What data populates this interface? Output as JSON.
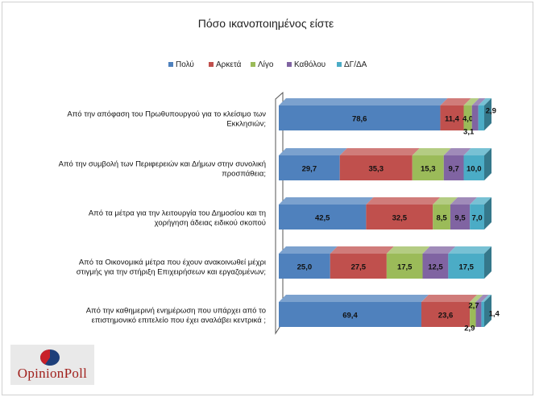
{
  "chart_data": {
    "type": "bar",
    "orientation": "horizontal",
    "stacked": true,
    "title": "Πόσο ικανοποιημένος είστε",
    "legend_position": "top",
    "categories": [
      [
        "Από την απόφαση του Πρωθυπουργού για το κλείσιμο των",
        "Εκκλησιών;"
      ],
      [
        "Από την συμβολή των Περιφερειών και Δήμων στην συνολική",
        "προσπάθεια;"
      ],
      [
        "Από τα μέτρα για την λειτουργία του Δημοσίου και τη",
        "χορήγηση άδειας ειδικού σκοπού"
      ],
      [
        "Από τα Οικονομικά μέτρα που έχουν ανακοινωθεί μέχρι",
        "στιγμής για την στήριξη Επιχειρήσεων και εργαζομένων;"
      ],
      [
        "Από την καθημερινή ενημέρωση που υπάρχει από το",
        "επιστημονικό επιτελείο που έχει αναλάβει κεντρικά ;"
      ]
    ],
    "series": [
      {
        "name": "Πολύ",
        "color": "#4f81bd",
        "values": [
          78.6,
          29.7,
          42.5,
          25.0,
          69.4
        ],
        "labels": [
          "78,6",
          "29,7",
          "42,5",
          "25,0",
          "69,4"
        ]
      },
      {
        "name": "Αρκετά",
        "color": "#c0504d",
        "values": [
          11.4,
          35.3,
          32.5,
          27.5,
          23.6
        ],
        "labels": [
          "11,4",
          "35,3",
          "32,5",
          "27,5",
          "23,6"
        ]
      },
      {
        "name": "Λίγο",
        "color": "#9bbb59",
        "values": [
          4.0,
          15.3,
          8.5,
          17.5,
          2.9
        ],
        "labels": [
          "4,0",
          "15,3",
          "8,5",
          "17,5",
          "2,9"
        ]
      },
      {
        "name": "Καθόλου",
        "color": "#8064a2",
        "values": [
          3.1,
          9.7,
          9.5,
          12.5,
          2.7
        ],
        "labels": [
          "3,1",
          "9,7",
          "9,5",
          "12,5",
          "2,7"
        ]
      },
      {
        "name": "ΔΓ/ΔΑ",
        "color": "#4bacc6",
        "values": [
          2.9,
          10.0,
          7.0,
          17.5,
          1.4
        ],
        "labels": [
          "2,9",
          "10,0",
          "7,0",
          "17,5",
          "1,4"
        ]
      }
    ],
    "xlim": [
      0,
      100
    ],
    "grid": false
  },
  "logo": {
    "text": "OpinionPoll"
  }
}
